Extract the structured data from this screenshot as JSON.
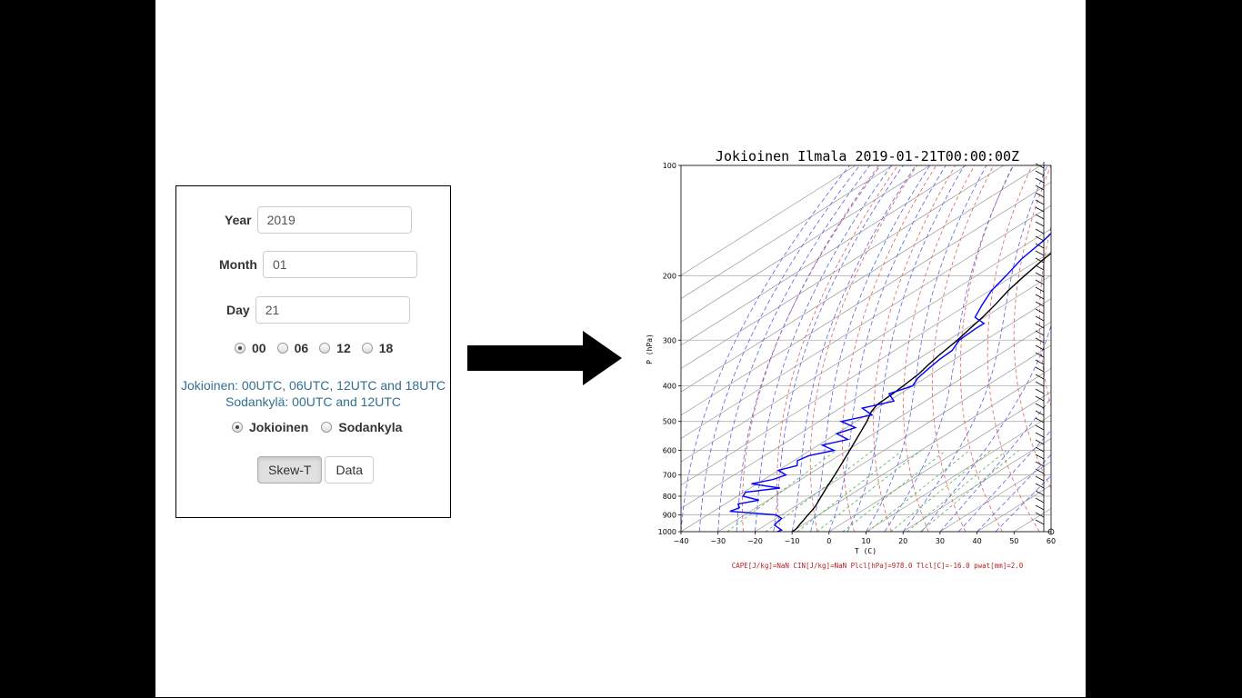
{
  "form": {
    "year_label": "Year",
    "year_value": "2019",
    "month_label": "Month",
    "month_value": "01",
    "day_label": "Day",
    "day_value": "21",
    "hours": [
      {
        "label": "00",
        "selected": true
      },
      {
        "label": "06",
        "selected": false
      },
      {
        "label": "12",
        "selected": false
      },
      {
        "label": "18",
        "selected": false
      }
    ],
    "info_line1": "Jokioinen: 00UTC, 06UTC, 12UTC and 18UTC",
    "info_line2": "Sodankylä: 00UTC and 12UTC",
    "stations": [
      {
        "label": "Jokioinen",
        "selected": true
      },
      {
        "label": "Sodankyla",
        "selected": false
      }
    ],
    "skewt_button": "Skew-T",
    "data_button": "Data"
  },
  "chart_data": {
    "type": "line",
    "title": "Jokioinen Ilmala 2019-01-21T00:00:00Z",
    "xlabel": "T (C)",
    "ylabel": "P (hPa)",
    "xlim": [
      -40,
      60
    ],
    "ylim": [
      1000,
      100
    ],
    "x_ticks": [
      -40,
      -30,
      -20,
      -10,
      0,
      10,
      20,
      30,
      40,
      50,
      60
    ],
    "x_tick_labels": [
      "−40",
      "−30",
      "−20",
      "−10",
      "0",
      "10",
      "20",
      "30",
      "40",
      "50",
      "60"
    ],
    "y_ticks": [
      100,
      200,
      300,
      400,
      500,
      600,
      700,
      800,
      900,
      1000
    ],
    "y_tick_labels": [
      "100",
      "200",
      "300",
      "400",
      "500",
      "600",
      "700",
      "800",
      "900",
      "1000"
    ],
    "skew_slope": 0.39,
    "series": [
      {
        "name": "temperature",
        "color": "#000000",
        "p": [
          1000,
          985,
          970,
          950,
          930,
          900,
          870,
          850,
          800,
          750,
          700,
          650,
          600,
          550,
          500,
          470,
          450,
          420,
          400,
          370,
          350,
          330,
          300,
          280,
          260,
          240,
          220,
          200,
          180,
          160,
          140,
          130,
          120,
          110,
          103
        ],
        "t": [
          -10,
          -10,
          -10.5,
          -11.2,
          -11.8,
          -12.9,
          -13.9,
          -14.7,
          -17.3,
          -20,
          -22.8,
          -25.9,
          -29.3,
          -33,
          -37.1,
          -40.1,
          -41.5,
          -42,
          -42.5,
          -43.5,
          -44.8,
          -46,
          -47.5,
          -49,
          -50.5,
          -52.5,
          -55,
          -57,
          -59,
          -60.5,
          -62,
          -63,
          -63.5,
          -64.5,
          -65
        ]
      },
      {
        "name": "dewpoint",
        "color": "#0000ff",
        "p": [
          1000,
          990,
          960,
          940,
          920,
          900,
          880,
          860,
          840,
          820,
          800,
          780,
          760,
          740,
          720,
          700,
          680,
          660,
          640,
          620,
          600,
          580,
          560,
          540,
          520,
          500,
          480,
          460,
          440,
          420,
          400,
          380,
          360,
          340,
          320,
          300,
          280,
          270,
          260,
          240,
          220,
          200,
          180,
          160,
          140,
          120,
          110,
          103
        ],
        "t": [
          -14,
          -13.5,
          -17.5,
          -18.2,
          -18.5,
          -21.5,
          -35.5,
          -34.5,
          -36.5,
          -32.5,
          -38.5,
          -39.5,
          -32,
          -41.5,
          -37.5,
          -36,
          -40,
          -37,
          -39,
          -38,
          -33.5,
          -39,
          -34.5,
          -40,
          -37.5,
          -44,
          -38.5,
          -44,
          -38.5,
          -43,
          -40,
          -42,
          -43,
          -44,
          -44.5,
          -47,
          -47.5,
          -47.5,
          -52.5,
          -56,
          -59.5,
          -62,
          -65,
          -67,
          -70,
          -72,
          -73,
          -74
        ]
      }
    ],
    "reference_lines": [
      "dry adiabats",
      "moist adiabats",
      "mixing ratio lines",
      "isotherms",
      "isobars"
    ],
    "wind_barbs": "right margin, full profile",
    "footer": "CAPE[J/kg]=NaN CIN[J/kg]=NaN Plcl[hPa]=978.0 Tlcl[C]=-16.0 pwat[mm]=2.0"
  }
}
